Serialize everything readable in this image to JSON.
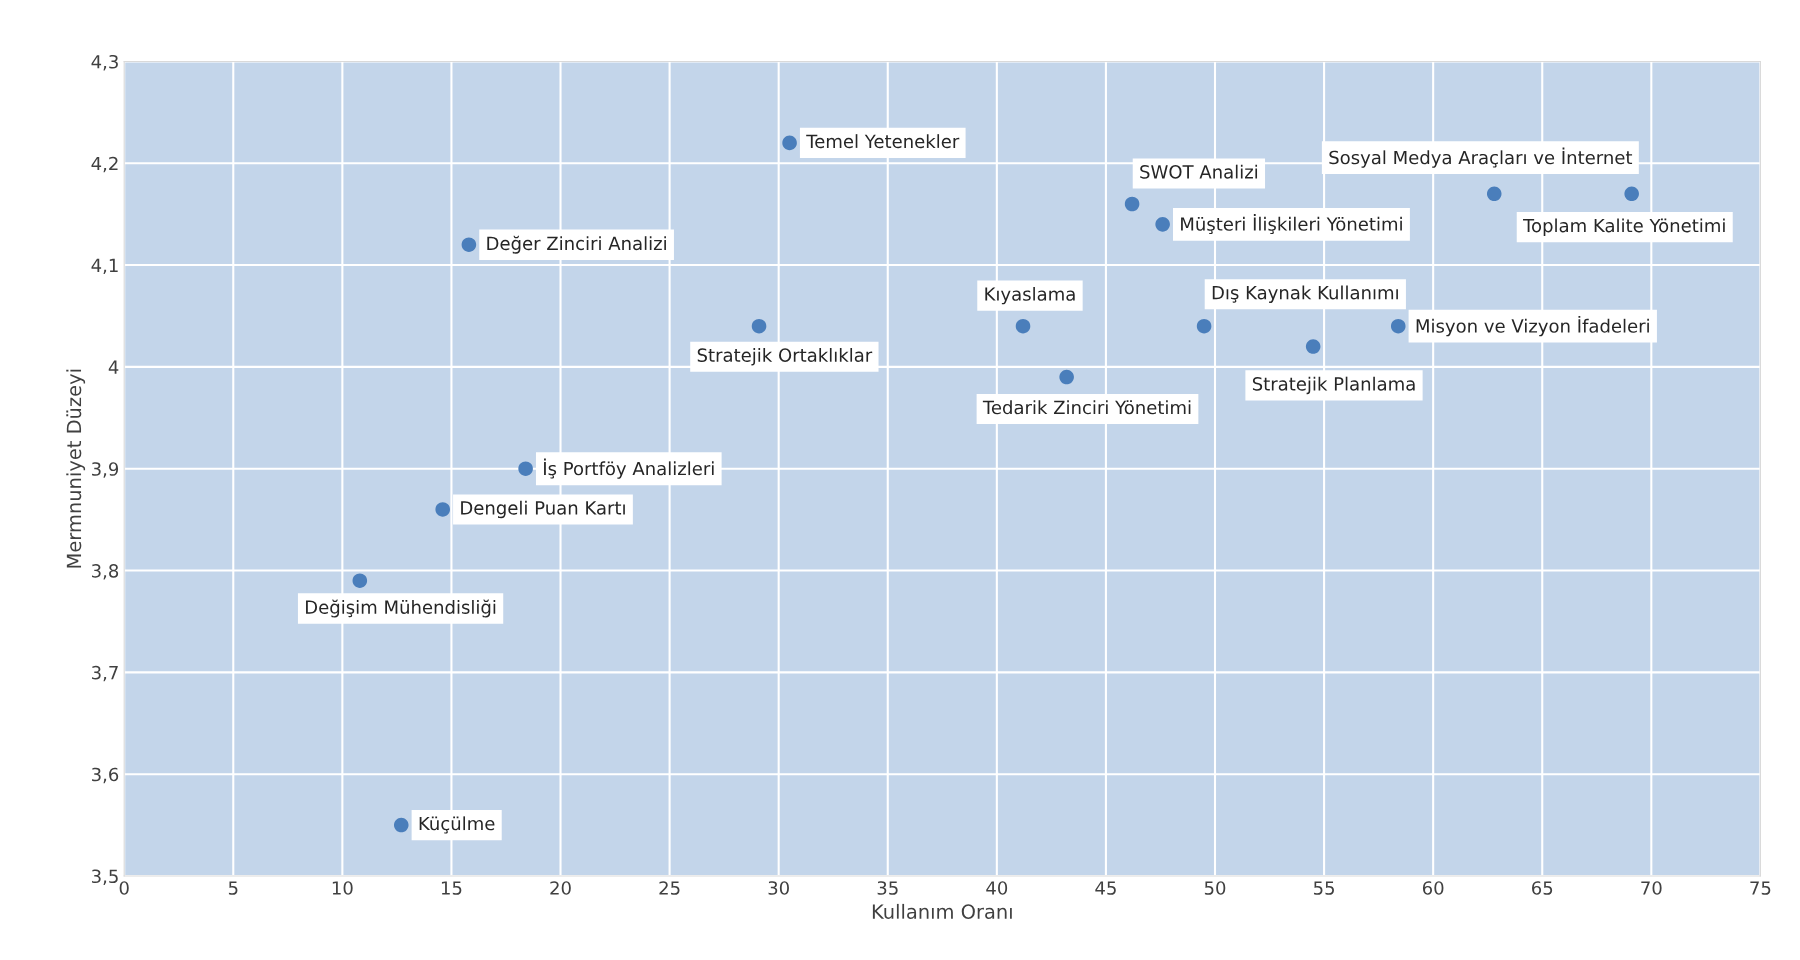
{
  "chart_data": {
    "type": "scatter",
    "xlabel": "Kullanım Oranı",
    "ylabel": "Mermnuniyet Düzeyi",
    "x": [
      30.5,
      15.8,
      29.1,
      18.4,
      14.6,
      10.8,
      12.7,
      41.2,
      43.2,
      46.2,
      47.6,
      49.5,
      54.5,
      58.4,
      62.8,
      69.1
    ],
    "values": [
      4.22,
      4.12,
      4.04,
      3.9,
      3.86,
      3.79,
      3.55,
      4.04,
      3.99,
      4.16,
      4.14,
      4.04,
      4.02,
      4.04,
      4.17,
      4.17
    ],
    "color": "#4a7ebb",
    "marker": "circle",
    "grid": true,
    "xlim": [
      0,
      75
    ],
    "xticks": [
      0,
      5,
      10,
      15,
      20,
      25,
      30,
      35,
      40,
      45,
      50,
      55,
      60,
      65,
      70,
      75
    ],
    "ylim": [
      3.5,
      4.3
    ],
    "yticks": [
      {
        "value": 3.5,
        "label": "3,5"
      },
      {
        "value": 3.6,
        "label": "3,6"
      },
      {
        "value": 3.7,
        "label": "3,7"
      },
      {
        "value": 3.8,
        "label": "3,8"
      },
      {
        "value": 3.9,
        "label": "3,9"
      },
      {
        "value": 4,
        "label": "4"
      },
      {
        "value": 4.1,
        "label": "4,1"
      },
      {
        "value": 4.2,
        "label": "4,2"
      },
      {
        "value": 4.3,
        "label": "4,3"
      }
    ],
    "annotations": [
      {
        "text": "Temel Yetenekler",
        "x": 30.5,
        "y": 4.22
      },
      {
        "text": "Değer Zinciri Analizi",
        "x": 15.8,
        "y": 4.12
      },
      {
        "text": "Stratejik Ortaklıklar",
        "x": 29.1,
        "y": 4.04
      },
      {
        "text": "İş Portföy Analizleri",
        "x": 18.4,
        "y": 3.9
      },
      {
        "text": "Dengeli Puan Kartı",
        "x": 14.6,
        "y": 3.86
      },
      {
        "text": "Değişim Mühendisliği",
        "x": 10.8,
        "y": 3.79
      },
      {
        "text": "Küçülme",
        "x": 12.7,
        "y": 3.55
      },
      {
        "text": "Kıyaslama",
        "x": 41.2,
        "y": 4.04
      },
      {
        "text": "Tedarik Zinciri Yönetimi",
        "x": 43.2,
        "y": 3.99
      },
      {
        "text": "SWOT Analizi",
        "x": 46.2,
        "y": 4.16
      },
      {
        "text": "Müşteri İlişkileri Yönetimi",
        "x": 47.6,
        "y": 4.14
      },
      {
        "text": "Dış Kaynak Kullanımı",
        "x": 49.5,
        "y": 4.04
      },
      {
        "text": "Stratejik Planlama",
        "x": 54.5,
        "y": 4.02
      },
      {
        "text": "Misyon ve Vizyon İfadeleri",
        "x": 58.4,
        "y": 4.04
      },
      {
        "text": "Sosyal Medya Araçları ve İnternet",
        "x": 62.8,
        "y": 4.17
      },
      {
        "text": "Toplam Kalite Yönetimi",
        "x": 69.1,
        "y": 4.17
      }
    ]
  }
}
